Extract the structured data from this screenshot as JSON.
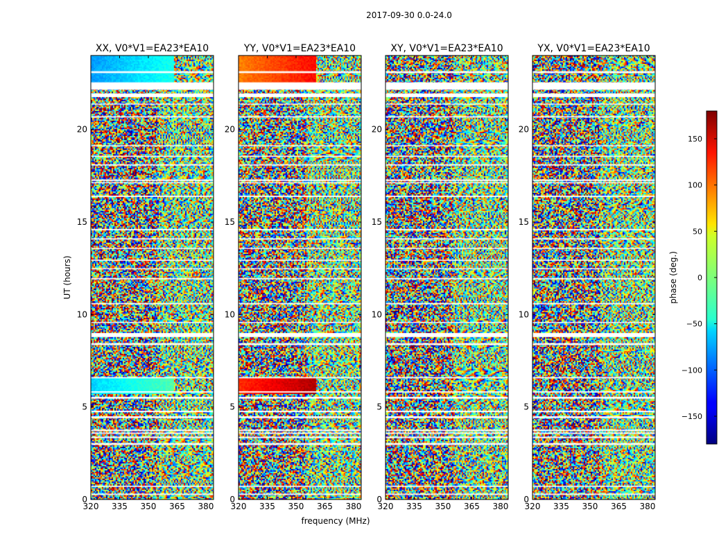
{
  "chart_data": {
    "type": "heatmap",
    "suptitle": "2017-09-30 0.0-24.0",
    "xlabel": "frequency (MHz)",
    "ylabel": "UT (hours)",
    "xlim": [
      320,
      384
    ],
    "ylim": [
      0,
      24
    ],
    "xticks": [
      320,
      335,
      350,
      365,
      380
    ],
    "yticks": [
      0,
      5,
      10,
      15,
      20
    ],
    "colormap": "jet",
    "colorbar": {
      "label": "phase (deg.)",
      "range": [
        -180,
        180
      ],
      "ticks": [
        -150,
        -100,
        -50,
        0,
        50,
        100,
        150
      ]
    },
    "panels": [
      {
        "title": "XX, V0*V1=EA23*EA10",
        "polarization": "XX",
        "baseline": "V0*V1=EA23*EA10"
      },
      {
        "title": "YY, V0*V1=EA23*EA10",
        "polarization": "YY",
        "baseline": "V0*V1=EA23*EA10"
      },
      {
        "title": "XY, V0*V1=EA23*EA10",
        "polarization": "XY",
        "baseline": "V0*V1=EA23*EA10"
      },
      {
        "title": "YX, V0*V1=EA23*EA10",
        "polarization": "YX",
        "baseline": "V0*V1=EA23*EA10"
      }
    ],
    "flagged_ut_hours": [
      [
        0.25,
        0.32
      ],
      [
        0.68,
        0.74
      ],
      [
        2.95,
        3.05
      ],
      [
        3.32,
        3.4
      ],
      [
        3.55,
        3.62
      ],
      [
        3.7,
        3.78
      ],
      [
        4.4,
        4.5
      ],
      [
        4.72,
        4.8
      ],
      [
        5.45,
        5.55
      ],
      [
        5.78,
        5.85
      ],
      [
        6.55,
        6.62
      ],
      [
        8.35,
        8.45
      ],
      [
        8.78,
        9.0
      ],
      [
        9.55,
        9.6
      ],
      [
        10.55,
        10.62
      ],
      [
        11.9,
        11.97
      ],
      [
        12.45,
        12.5
      ],
      [
        12.9,
        12.96
      ],
      [
        13.55,
        13.6
      ],
      [
        14.05,
        14.12
      ],
      [
        14.55,
        14.62
      ],
      [
        16.35,
        16.42
      ],
      [
        17.1,
        17.15
      ],
      [
        17.22,
        17.3
      ],
      [
        18.05,
        18.12
      ],
      [
        18.52,
        18.58
      ],
      [
        19.1,
        19.15
      ],
      [
        20.65,
        20.72
      ],
      [
        21.35,
        21.4
      ],
      [
        21.75,
        21.95
      ],
      [
        22.15,
        22.55
      ],
      [
        23.05,
        23.15
      ]
    ],
    "coherent_phase_segments": [
      {
        "panel": "XX",
        "ut_hours": [
          22.4,
          24.0
        ],
        "freq_mhz": [
          320,
          363
        ],
        "phase_deg": -80
      },
      {
        "panel": "XX",
        "ut_hours": [
          5.7,
          6.6
        ],
        "freq_mhz": [
          320,
          363
        ],
        "phase_deg": -60
      },
      {
        "panel": "YY",
        "ut_hours": [
          22.4,
          24.0
        ],
        "freq_mhz": [
          320,
          360
        ],
        "phase_deg": 90
      },
      {
        "panel": "YY",
        "ut_hours": [
          5.7,
          6.6
        ],
        "freq_mhz": [
          320,
          360
        ],
        "phase_deg": 120
      }
    ]
  }
}
